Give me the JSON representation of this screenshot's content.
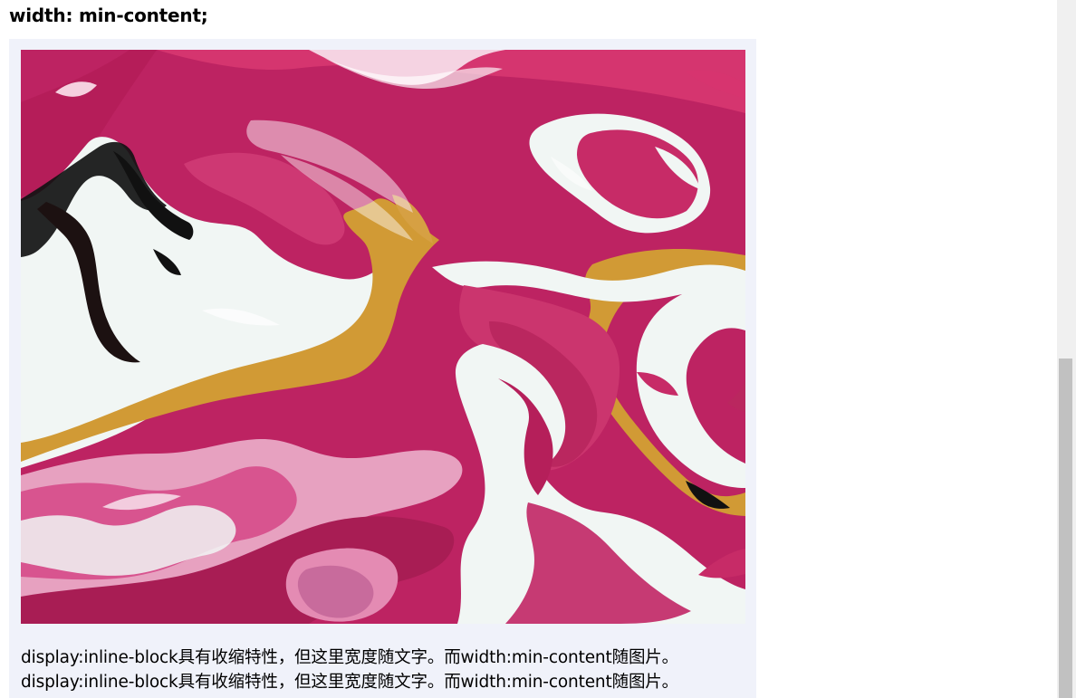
{
  "heading": "width: min-content;",
  "image": {
    "alt": "粉色流体艺术画",
    "colors": {
      "magenta": "#c72b67",
      "dark_magenta": "#a81d54",
      "light_pink": "#e7a1c0",
      "white": "#f1f6f4",
      "gold": "#d19a35",
      "black": "#121212"
    }
  },
  "caption": [
    "display:inline-block具有收缩特性，但这里宽度随文字。而width:min-content随图片。",
    "display:inline-block具有收缩特性，但这里宽度随文字。而width:min-content随图片。"
  ]
}
